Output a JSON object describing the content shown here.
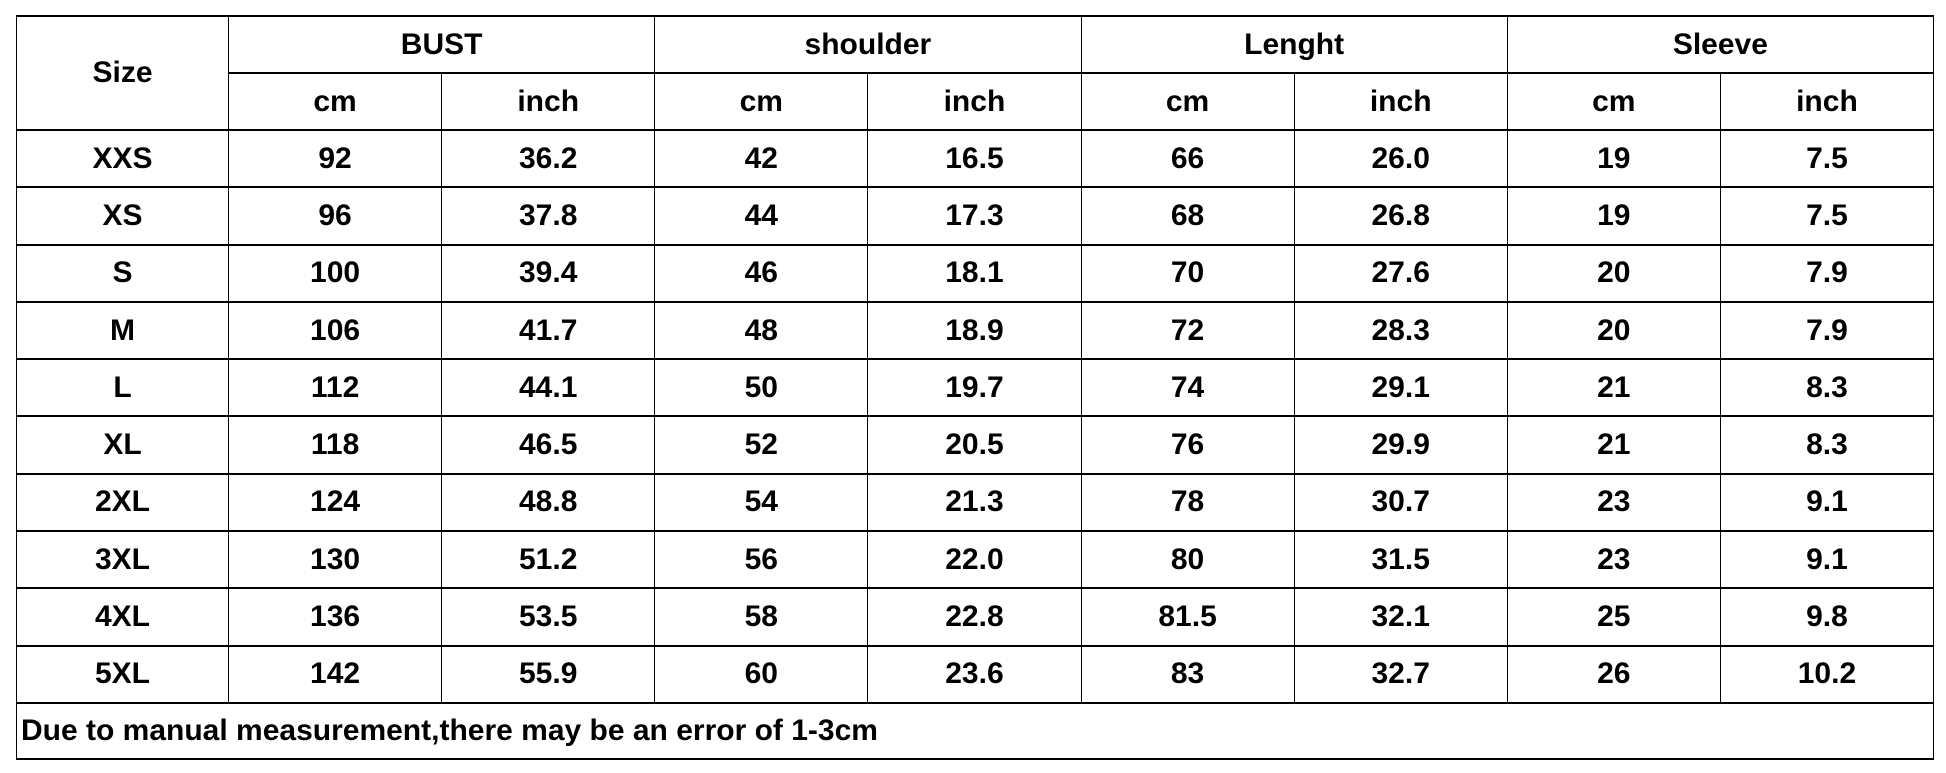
{
  "table": {
    "size_header": "Size",
    "groups": [
      "BUST",
      "shoulder",
      "Lenght",
      "Sleeve"
    ],
    "units": [
      "cm",
      "inch"
    ],
    "rows": [
      [
        "XXS",
        "92",
        "36.2",
        "42",
        "16.5",
        "66",
        "26.0",
        "19",
        "7.5"
      ],
      [
        "XS",
        "96",
        "37.8",
        "44",
        "17.3",
        "68",
        "26.8",
        "19",
        "7.5"
      ],
      [
        "S",
        "100",
        "39.4",
        "46",
        "18.1",
        "70",
        "27.6",
        "20",
        "7.9"
      ],
      [
        "M",
        "106",
        "41.7",
        "48",
        "18.9",
        "72",
        "28.3",
        "20",
        "7.9"
      ],
      [
        "L",
        "112",
        "44.1",
        "50",
        "19.7",
        "74",
        "29.1",
        "21",
        "8.3"
      ],
      [
        "XL",
        "118",
        "46.5",
        "52",
        "20.5",
        "76",
        "29.9",
        "21",
        "8.3"
      ],
      [
        "2XL",
        "124",
        "48.8",
        "54",
        "21.3",
        "78",
        "30.7",
        "23",
        "9.1"
      ],
      [
        "3XL",
        "130",
        "51.2",
        "56",
        "22.0",
        "80",
        "31.5",
        "23",
        "9.1"
      ],
      [
        "4XL",
        "136",
        "53.5",
        "58",
        "22.8",
        "81.5",
        "32.1",
        "25",
        "9.8"
      ],
      [
        "5XL",
        "142",
        "55.9",
        "60",
        "23.6",
        "83",
        "32.7",
        "26",
        "10.2"
      ]
    ],
    "note": "Due to manual measurement,there may be an error of 1-3cm"
  }
}
